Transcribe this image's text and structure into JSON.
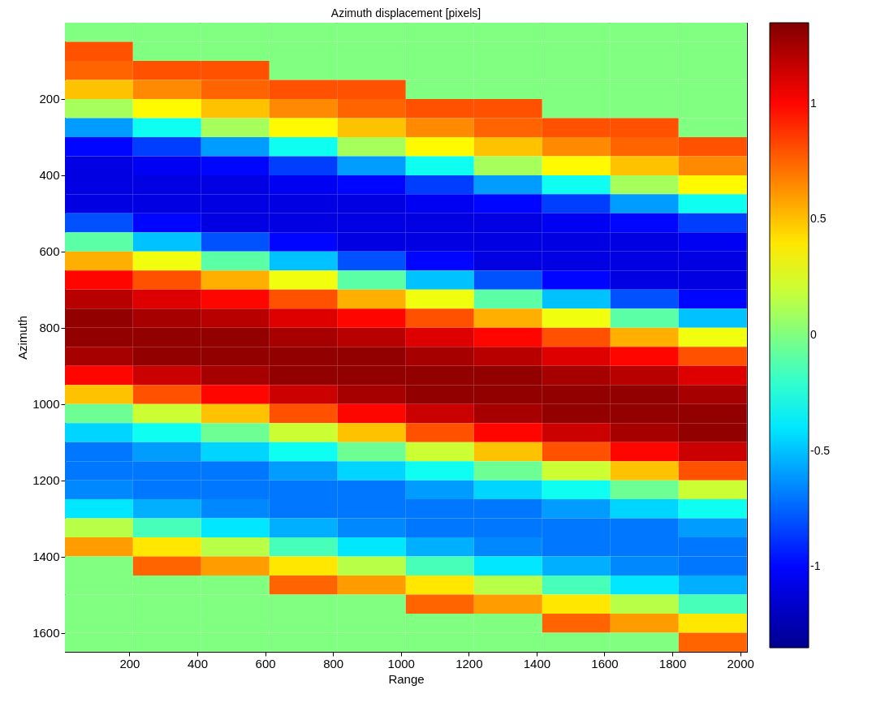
{
  "chart_data": {
    "type": "heatmap",
    "title": "Azimuth displacement [pixels]",
    "xlabel": "Range",
    "ylabel": "Azimuth",
    "x": [
      110,
      311,
      512,
      713,
      914,
      1115,
      1316,
      1517,
      1718,
      1919
    ],
    "y": [
      25,
      75,
      125,
      175,
      225,
      275,
      325,
      375,
      425,
      475,
      525,
      575,
      625,
      675,
      725,
      775,
      825,
      875,
      925,
      975,
      1025,
      1075,
      1125,
      1175,
      1225,
      1275,
      1325,
      1375,
      1425,
      1475,
      1525,
      1575,
      1625
    ],
    "cells": [
      [
        0,
        0,
        0,
        0,
        0,
        0,
        0,
        0,
        0,
        0
      ],
      [
        0.8,
        0,
        0,
        0,
        0,
        0,
        0,
        0,
        0,
        0
      ],
      [
        0.75,
        0.8,
        0.8,
        0,
        0,
        0,
        0,
        0,
        0,
        0
      ],
      [
        0.5,
        0.65,
        0.75,
        0.8,
        0.8,
        0,
        0,
        0,
        0,
        0
      ],
      [
        0.1,
        0.35,
        0.5,
        0.65,
        0.75,
        0.8,
        0.8,
        0,
        0,
        0
      ],
      [
        -0.6,
        -0.3,
        0.1,
        0.35,
        0.5,
        0.65,
        0.75,
        0.8,
        0.8,
        0
      ],
      [
        -1.0,
        -0.85,
        -0.6,
        -0.3,
        0.1,
        0.35,
        0.5,
        0.65,
        0.75,
        0.8
      ],
      [
        -1.1,
        -1.05,
        -1.0,
        -0.85,
        -0.6,
        -0.3,
        0.1,
        0.35,
        0.5,
        0.65
      ],
      [
        -1.1,
        -1.1,
        -1.1,
        -1.05,
        -1.0,
        -0.85,
        -0.6,
        -0.3,
        0.1,
        0.35
      ],
      [
        -1.1,
        -1.1,
        -1.1,
        -1.1,
        -1.1,
        -1.05,
        -1.0,
        -0.85,
        -0.6,
        -0.3
      ],
      [
        -0.8,
        -1.0,
        -1.1,
        -1.1,
        -1.1,
        -1.1,
        -1.1,
        -1.05,
        -1.0,
        -0.85
      ],
      [
        -0.1,
        -0.5,
        -0.8,
        -1.0,
        -1.1,
        -1.1,
        -1.1,
        -1.1,
        -1.1,
        -1.05
      ],
      [
        0.55,
        0.3,
        -0.1,
        -0.5,
        -0.8,
        -1.0,
        -1.1,
        -1.1,
        -1.1,
        -1.1
      ],
      [
        1.0,
        0.8,
        0.55,
        0.3,
        -0.1,
        -0.5,
        -0.8,
        -1.0,
        -1.1,
        -1.1
      ],
      [
        1.2,
        1.1,
        1.0,
        0.8,
        0.55,
        0.3,
        -0.1,
        -0.5,
        -0.8,
        -1.0
      ],
      [
        1.3,
        1.25,
        1.2,
        1.1,
        1.0,
        0.8,
        0.55,
        0.3,
        -0.1,
        -0.5
      ],
      [
        1.3,
        1.3,
        1.3,
        1.25,
        1.2,
        1.1,
        1.0,
        0.8,
        0.55,
        0.3
      ],
      [
        1.25,
        1.3,
        1.3,
        1.3,
        1.3,
        1.25,
        1.2,
        1.1,
        1.0,
        0.8
      ],
      [
        1.0,
        1.15,
        1.25,
        1.3,
        1.3,
        1.3,
        1.3,
        1.25,
        1.2,
        1.1
      ],
      [
        0.5,
        0.8,
        1.0,
        1.15,
        1.25,
        1.3,
        1.3,
        1.3,
        1.3,
        1.25
      ],
      [
        -0.05,
        0.2,
        0.5,
        0.8,
        1.0,
        1.15,
        1.25,
        1.3,
        1.3,
        1.3
      ],
      [
        -0.45,
        -0.3,
        -0.05,
        0.2,
        0.5,
        0.8,
        1.0,
        1.15,
        1.25,
        1.3
      ],
      [
        -0.7,
        -0.6,
        -0.45,
        -0.3,
        -0.05,
        0.2,
        0.5,
        0.8,
        1.0,
        1.15
      ],
      [
        -0.7,
        -0.7,
        -0.7,
        -0.6,
        -0.45,
        -0.3,
        -0.05,
        0.2,
        0.5,
        0.8
      ],
      [
        -0.65,
        -0.7,
        -0.7,
        -0.7,
        -0.7,
        -0.6,
        -0.45,
        -0.3,
        -0.05,
        0.2
      ],
      [
        -0.4,
        -0.55,
        -0.65,
        -0.7,
        -0.7,
        -0.7,
        -0.7,
        -0.6,
        -0.45,
        -0.3
      ],
      [
        0.15,
        -0.15,
        -0.4,
        -0.55,
        -0.65,
        -0.7,
        -0.7,
        -0.7,
        -0.7,
        -0.6
      ],
      [
        0.6,
        0.4,
        0.15,
        -0.15,
        -0.4,
        -0.55,
        -0.65,
        -0.7,
        -0.7,
        -0.7
      ],
      [
        0,
        0.75,
        0.6,
        0.4,
        0.15,
        -0.15,
        -0.4,
        -0.55,
        -0.65,
        -0.7
      ],
      [
        0,
        0,
        0,
        0.75,
        0.6,
        0.4,
        0.15,
        -0.15,
        -0.4,
        -0.55
      ],
      [
        0,
        0,
        0,
        0,
        0,
        0.75,
        0.6,
        0.4,
        0.15,
        -0.15
      ],
      [
        0,
        0,
        0,
        0,
        0,
        0,
        0,
        0.75,
        0.6,
        0.4
      ],
      [
        0,
        0,
        0,
        0,
        0,
        0,
        0,
        0,
        0,
        0.75
      ]
    ],
    "xlim": [
      10,
      2020
    ],
    "xticks": [
      200,
      400,
      600,
      800,
      1000,
      1200,
      1400,
      1600,
      1800,
      2000
    ],
    "ylim": [
      1650,
      0
    ],
    "yticks": [
      200,
      400,
      600,
      800,
      1000,
      1200,
      1400,
      1600
    ],
    "clim": [
      -1.35,
      1.35
    ],
    "cticks": [
      -1,
      -0.5,
      0,
      0.5,
      1
    ]
  }
}
